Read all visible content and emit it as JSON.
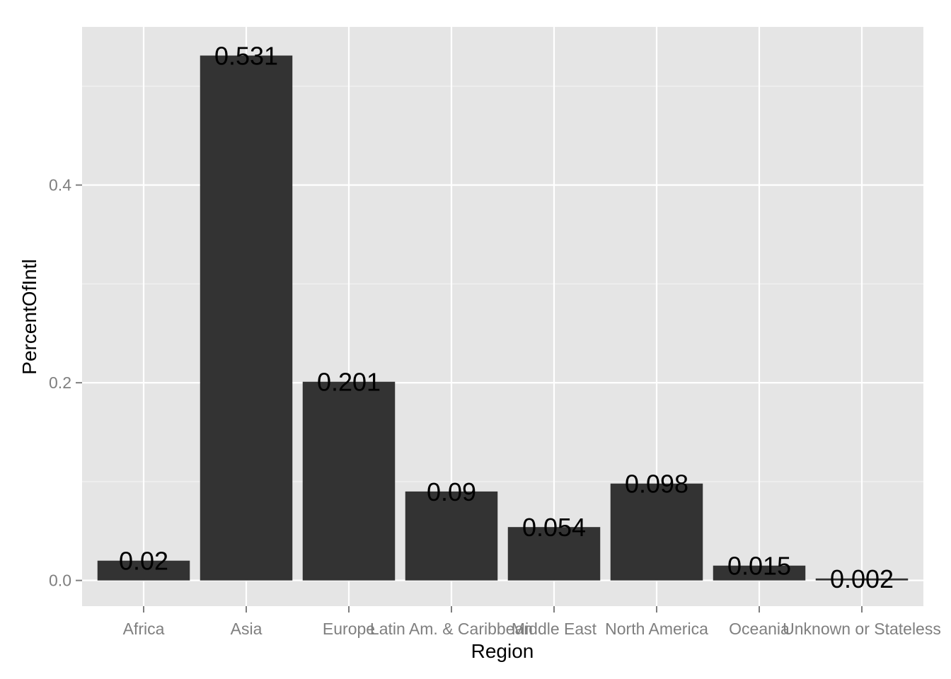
{
  "chart_data": {
    "type": "bar",
    "categories": [
      "Africa",
      "Asia",
      "Europe",
      "Latin Am. & Caribbean",
      "Middle East",
      "North America",
      "Oceania",
      "Unknown or Stateless"
    ],
    "values": [
      0.02,
      0.531,
      0.201,
      0.09,
      0.054,
      0.098,
      0.015,
      0.002
    ],
    "data_labels": [
      "0.02",
      "0.531",
      "0.201",
      "0.09",
      "0.054",
      "0.098",
      "0.015",
      "0.002"
    ],
    "xlabel": "Region",
    "ylabel": "PercentOfIntl",
    "ylim": [
      -0.026,
      0.56
    ],
    "yticks": [
      0.0,
      0.2,
      0.4
    ],
    "ytick_labels": [
      "0.0",
      "0.2",
      "0.4"
    ],
    "grid": true,
    "legend": "none",
    "colors": {
      "panel_background": "#e5e5e5",
      "grid_major": "#ffffff",
      "grid_minor": "#f2f2f2",
      "bar_fill": "#333333",
      "tick_text": "#7f7f7f",
      "tick_mark": "#7f7f7f",
      "title_text": "#000000",
      "data_label_text": "#000000"
    }
  }
}
